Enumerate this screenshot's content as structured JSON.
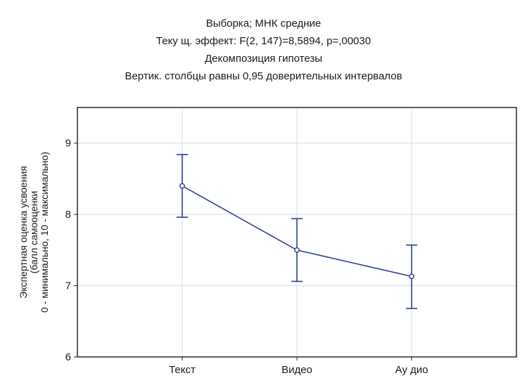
{
  "chart_data": {
    "type": "line",
    "title": "Выборка; МНК средние",
    "subtitle_lines": [
      "Теку щ.   эффект: F(2,  147)=8,5894,  p=,00030",
      "Декомпозиция гипотезы",
      "Вертик. столбцы равны 0,95 доверительных интервалов"
    ],
    "xlabel": "",
    "ylabel_lines": [
      "Экспертная оценка усвоения",
      "(балл самооценки",
      "0 - минимально, 10 - максимально)"
    ],
    "categories": [
      "Текст",
      "Видео",
      "Ау дио"
    ],
    "series": [
      {
        "values": [
          8.4,
          7.5,
          7.13
        ],
        "ci_lower": [
          7.96,
          7.06,
          6.68
        ],
        "ci_upper": [
          8.84,
          7.94,
          7.57
        ]
      }
    ],
    "ylim": [
      6,
      9.5
    ],
    "yticks": [
      6,
      7,
      8,
      9
    ],
    "grid": true,
    "line_color": "#2b3d98",
    "grid_color": "#d7dbe8"
  }
}
